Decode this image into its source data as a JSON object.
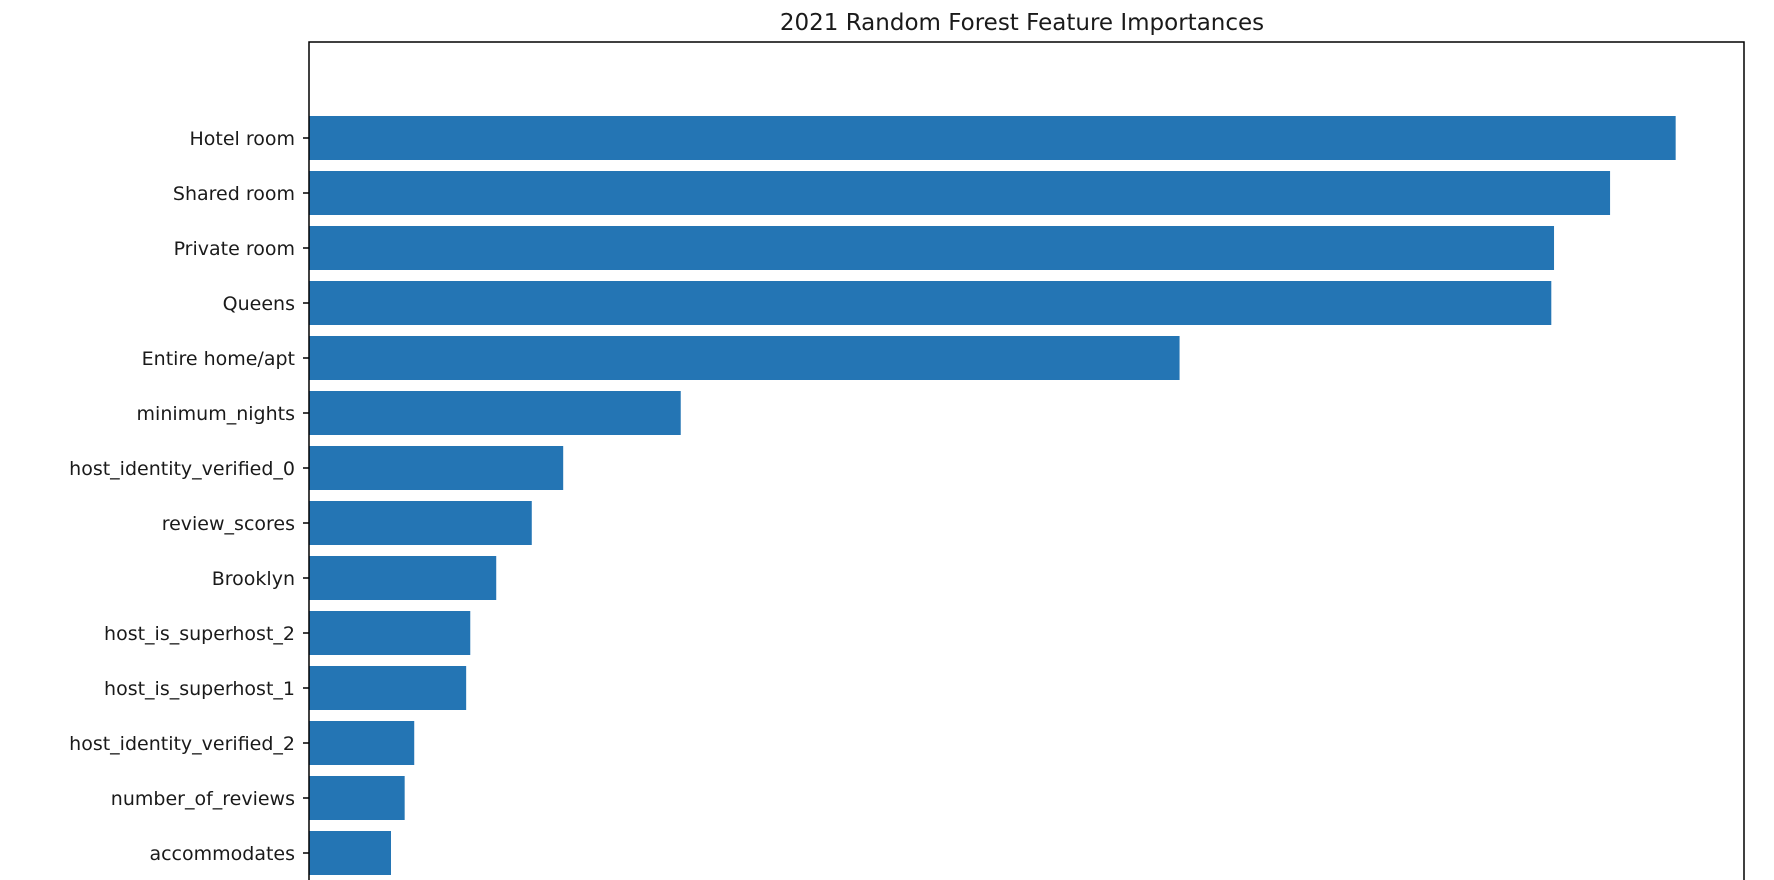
{
  "chart_data": {
    "type": "bar",
    "orientation": "horizontal",
    "title": "2021 Random Forest Feature Importances",
    "xlabel": "",
    "ylabel": "",
    "categories": [
      "Hotel room",
      "Shared room",
      "Private room",
      "Queens",
      "Entire home/apt",
      "minimum_nights",
      "host_identity_verified_0",
      "review_scores",
      "Brooklyn",
      "host_is_superhost_2",
      "host_is_superhost_1",
      "host_identity_verified_2",
      "number_of_reviews",
      "accommodates"
    ],
    "values": [
      1.0,
      0.952,
      0.911,
      0.909,
      0.637,
      0.272,
      0.186,
      0.163,
      0.137,
      0.118,
      0.115,
      0.077,
      0.07,
      0.06
    ],
    "xlim": [
      0,
      1.05
    ],
    "grid": false,
    "bar_color": "#2475b4"
  }
}
